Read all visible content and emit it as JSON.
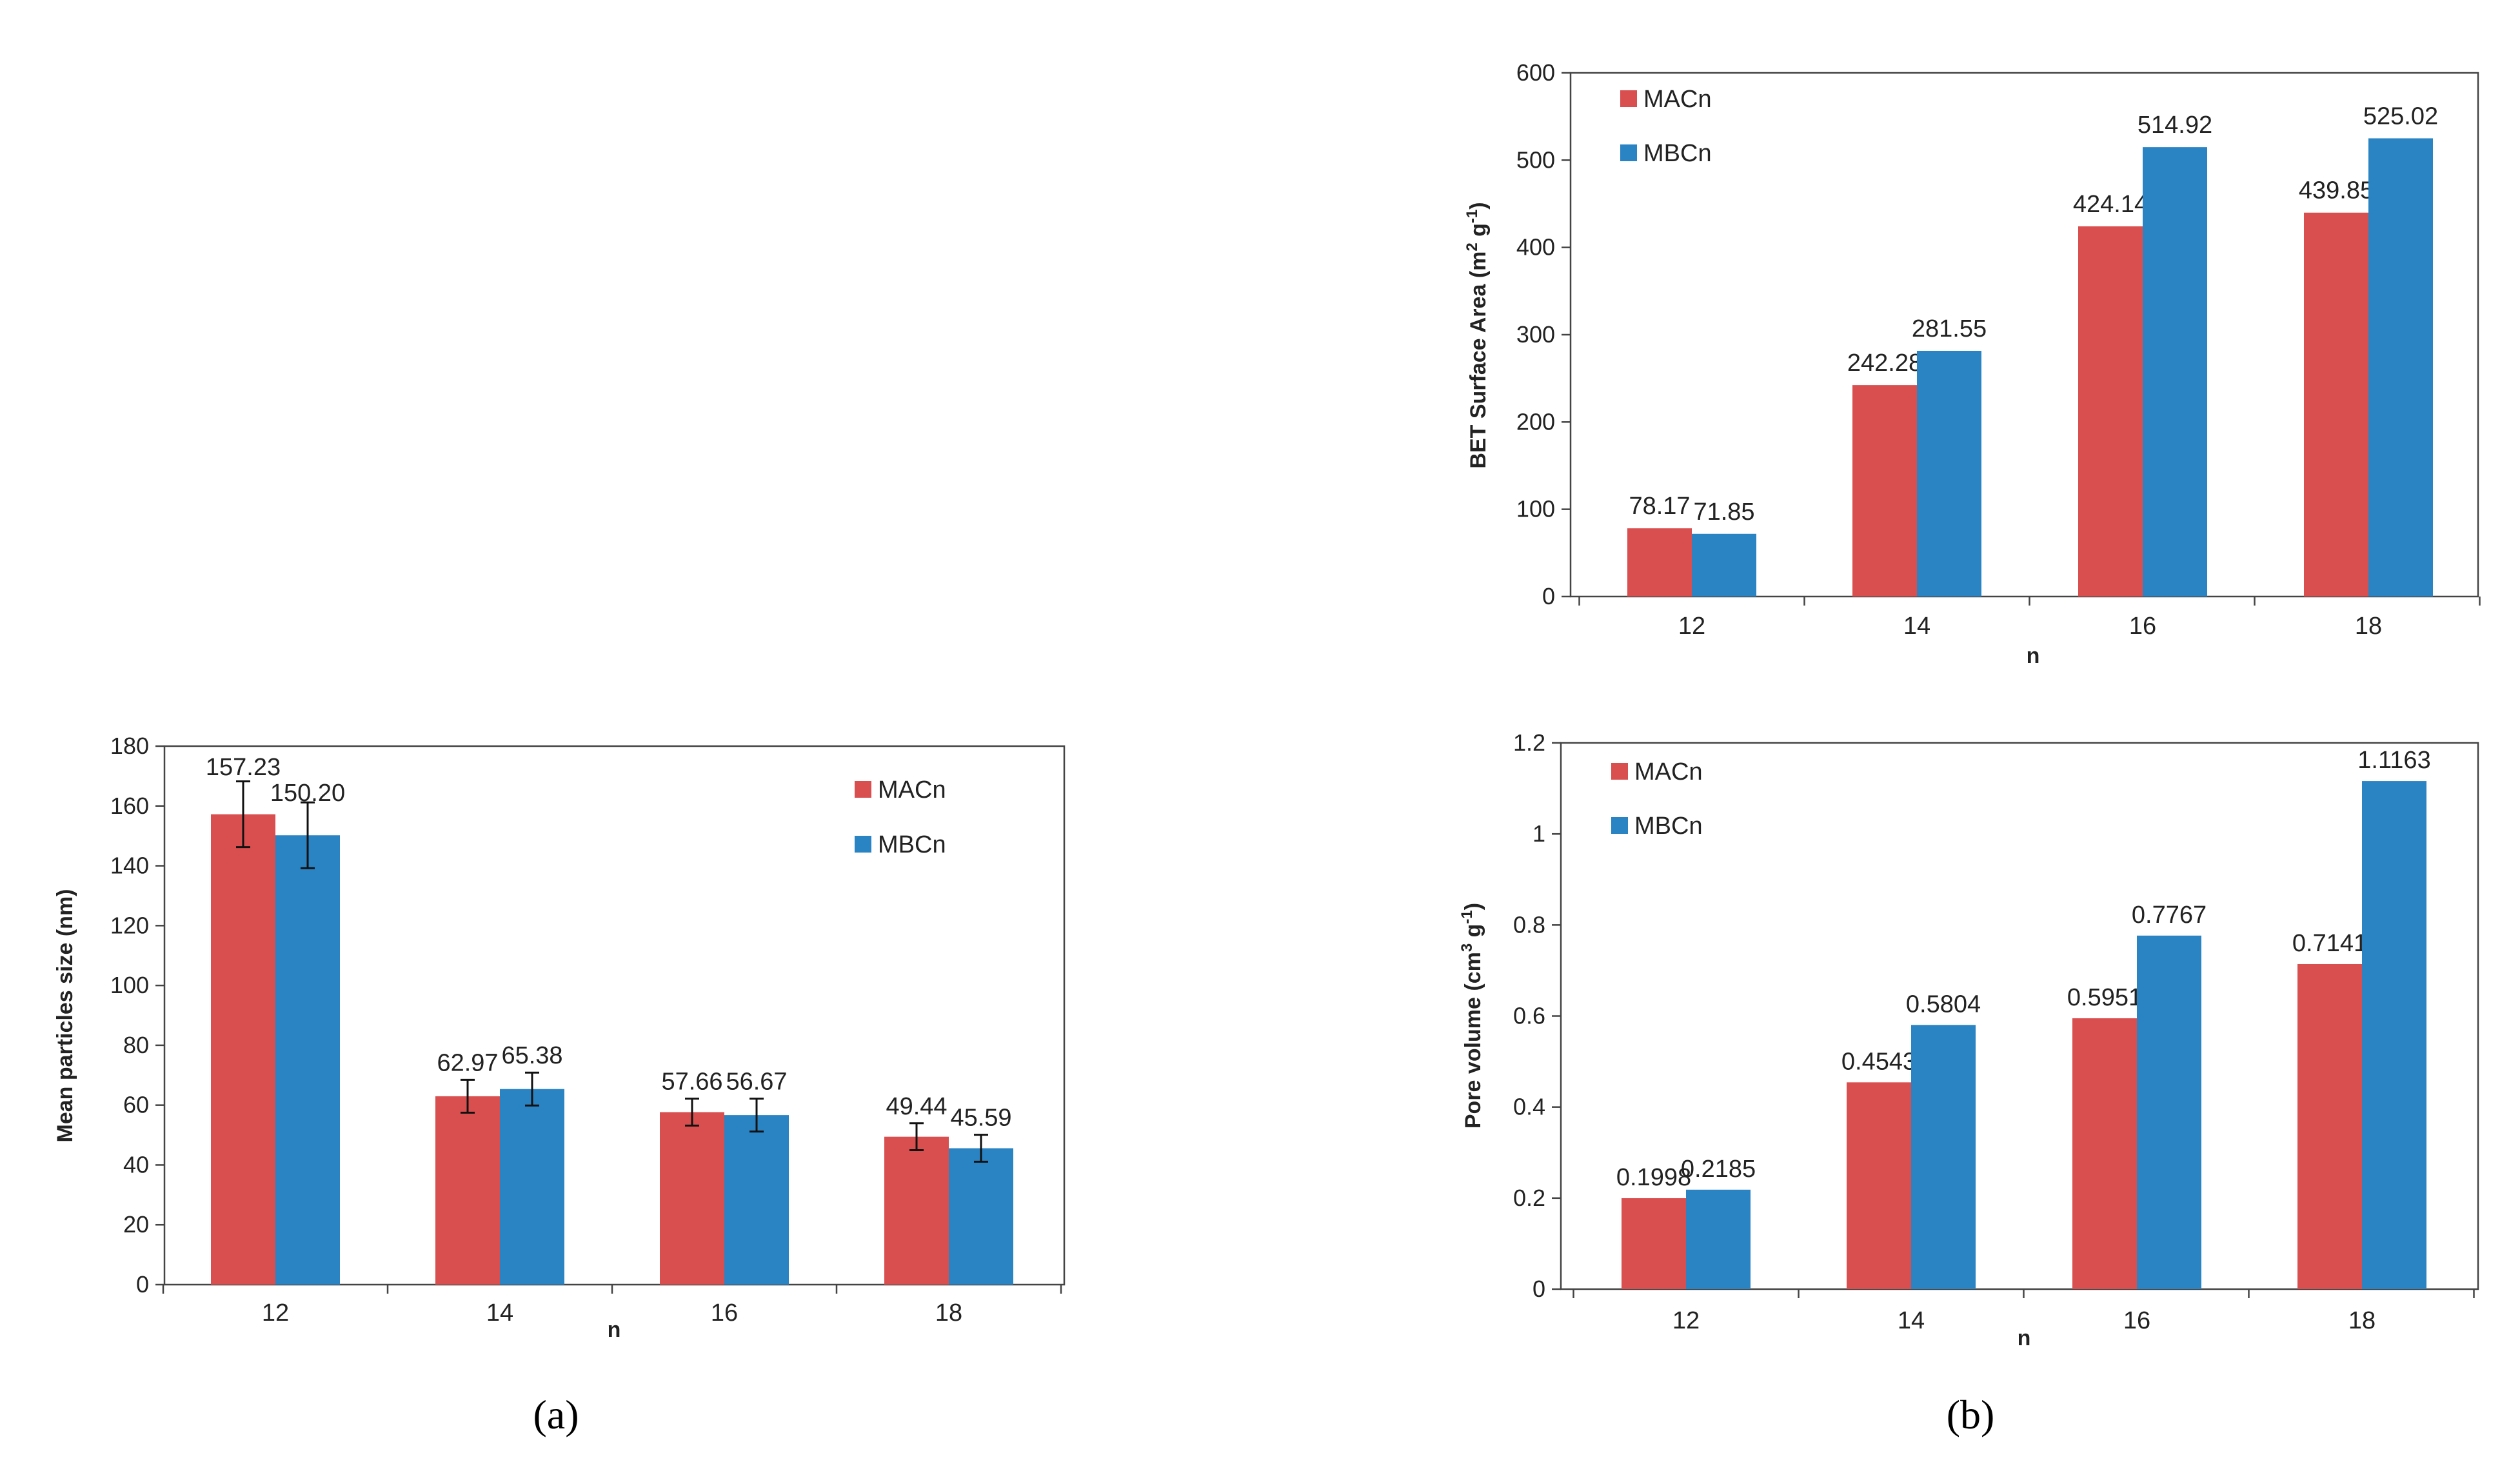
{
  "colors": {
    "MACn": "#d94f4f",
    "MBCn": "#2a84c4"
  },
  "captions": {
    "a": "(a)",
    "b": "(b)"
  },
  "chart_data": [
    {
      "id": "particles",
      "type": "bar",
      "categories": [
        "12",
        "14",
        "16",
        "18"
      ],
      "series": [
        {
          "name": "MACn",
          "values": [
            157.23,
            62.97,
            57.66,
            49.44
          ],
          "labels": [
            "157.23",
            "62.97",
            "57.66",
            "49.44"
          ],
          "errors": [
            11,
            5.5,
            4.5,
            4.5
          ]
        },
        {
          "name": "MBCn",
          "values": [
            150.2,
            65.38,
            56.67,
            45.59
          ],
          "labels": [
            "150.20",
            "65.38",
            "56.67",
            "45.59"
          ],
          "errors": [
            11,
            5.5,
            5.5,
            4.5
          ]
        }
      ],
      "xlabel": "n",
      "ylabel": "Mean particles size (nm)",
      "ylim": [
        0,
        180
      ],
      "yticks": [
        "0",
        "20",
        "40",
        "60",
        "80",
        "100",
        "120",
        "140",
        "160",
        "180"
      ],
      "legend": "top-right",
      "grid": false
    },
    {
      "id": "bet",
      "type": "bar",
      "categories": [
        "12",
        "14",
        "16",
        "18"
      ],
      "series": [
        {
          "name": "MACn",
          "values": [
            78.17,
            242.28,
            424.14,
            439.85
          ],
          "labels": [
            "78.17",
            "242.28",
            "424.14",
            "439.85"
          ]
        },
        {
          "name": "MBCn",
          "values": [
            71.85,
            281.55,
            514.92,
            525.02
          ],
          "labels": [
            "71.85",
            "281.55",
            "514.92",
            "525.02"
          ]
        }
      ],
      "xlabel": "n",
      "ylabel_parts": [
        "BET Surface Area (m",
        "2",
        " g",
        "-1",
        ")"
      ],
      "ylim": [
        0,
        600
      ],
      "yticks": [
        "0",
        "100",
        "200",
        "300",
        "400",
        "500",
        "600"
      ],
      "legend": "top-left",
      "grid": false
    },
    {
      "id": "pore",
      "type": "bar",
      "categories": [
        "12",
        "14",
        "16",
        "18"
      ],
      "series": [
        {
          "name": "MACn",
          "values": [
            0.1998,
            0.4543,
            0.5951,
            0.7141
          ],
          "labels": [
            "0.1998",
            "0.4543",
            "0.5951",
            "0.7141"
          ]
        },
        {
          "name": "MBCn",
          "values": [
            0.2185,
            0.5804,
            0.7767,
            1.1163
          ],
          "labels": [
            "0.2185",
            "0.5804",
            "0.7767",
            "1.1163"
          ]
        }
      ],
      "xlabel": "n",
      "ylabel_parts": [
        "Pore volume (cm",
        "3",
        " g",
        "-1",
        ")"
      ],
      "ylim": [
        0,
        1.2
      ],
      "yticks": [
        "0",
        "0.2",
        "0.4",
        "0.6",
        "0.8",
        "1",
        "1.2"
      ],
      "legend": "top-left",
      "grid": false
    }
  ]
}
